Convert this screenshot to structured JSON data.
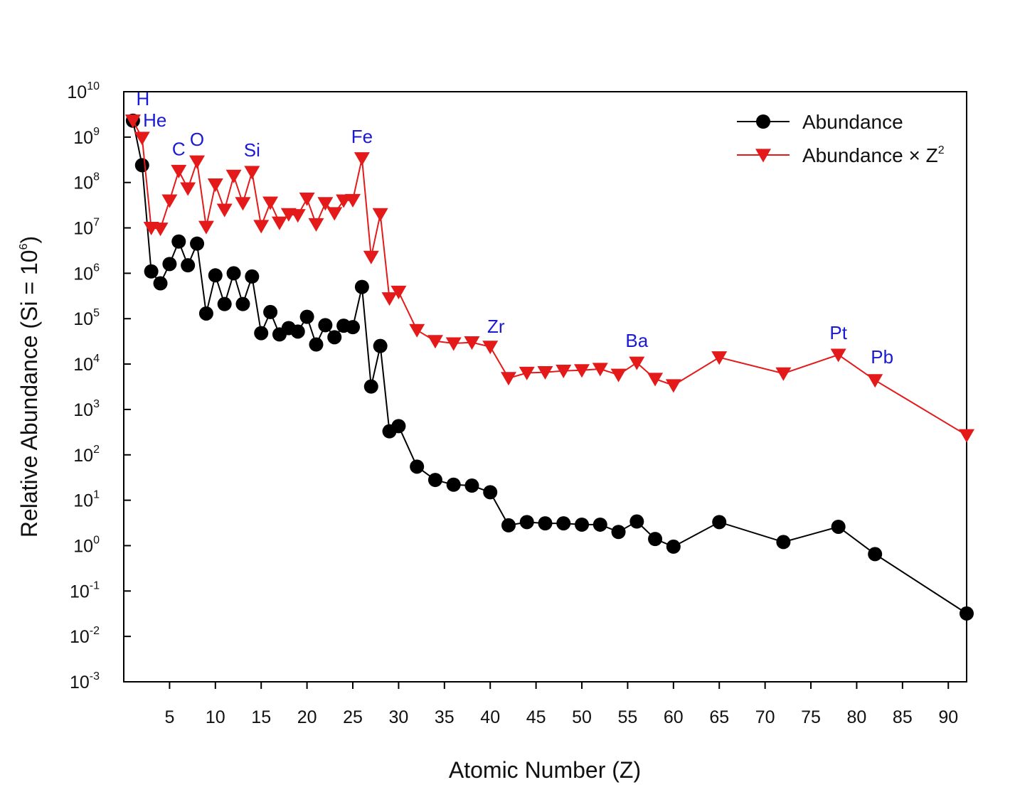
{
  "chart_data": {
    "type": "line",
    "xlabel": "Atomic Number (Z)",
    "ylabel_parts": [
      "Relative Abundance (Si = 10",
      "6",
      ")"
    ],
    "y_scale": "log",
    "xlim": [
      0,
      92
    ],
    "ylim_exp": [
      -3,
      10
    ],
    "x_ticks": [
      5,
      10,
      15,
      20,
      25,
      30,
      35,
      40,
      45,
      50,
      55,
      60,
      65,
      70,
      75,
      80,
      85,
      90
    ],
    "y_tick_exponents": [
      -3,
      -2,
      -1,
      0,
      1,
      2,
      3,
      4,
      5,
      6,
      7,
      8,
      9,
      10
    ],
    "y_tick_base": "10",
    "grid": false,
    "legend_position": "top-right",
    "series": [
      {
        "name": "Abundance",
        "color": "#000000",
        "marker": "circle",
        "x": [
          1,
          2,
          3,
          4,
          5,
          6,
          7,
          8,
          9,
          10,
          11,
          12,
          13,
          14,
          15,
          16,
          17,
          18,
          19,
          20,
          21,
          22,
          23,
          24,
          25,
          26,
          27,
          28,
          29,
          30,
          32,
          34,
          36,
          38,
          40,
          42,
          44,
          46,
          48,
          50,
          52,
          54,
          56,
          58,
          60,
          65,
          72,
          78,
          82,
          92
        ],
        "y": [
          2300000000.0,
          240000000.0,
          1100000.0,
          600000.0,
          1600000.0,
          5000000.0,
          1500000.0,
          4500000.0,
          130000.0,
          900000.0,
          210000.0,
          1000000.0,
          210000.0,
          850000.0,
          48000.0,
          140000.0,
          45000.0,
          62000.0,
          52000.0,
          110000.0,
          27000.0,
          72000.0,
          39000.0,
          70000.0,
          65000.0,
          500000.0,
          3200.0,
          25000.0,
          330,
          430,
          55,
          28,
          22,
          21,
          15,
          2.8,
          3.3,
          3.1,
          3.1,
          2.9,
          2.9,
          2.0,
          3.4,
          1.4,
          0.95,
          3.3,
          1.2,
          2.6,
          0.65,
          0.032
        ]
      },
      {
        "name": "Abundance × Z",
        "name_sup": "2",
        "color": "#e41a1a",
        "marker": "triangle-down",
        "x": [
          1,
          2,
          3,
          4,
          5,
          6,
          7,
          8,
          9,
          10,
          11,
          12,
          13,
          14,
          15,
          16,
          17,
          18,
          19,
          20,
          21,
          22,
          23,
          24,
          25,
          26,
          27,
          28,
          29,
          30,
          32,
          34,
          36,
          38,
          40,
          42,
          44,
          46,
          48,
          50,
          52,
          54,
          56,
          58,
          60,
          65,
          72,
          78,
          82,
          92
        ],
        "y": [
          2300000000.0,
          960000000.0,
          10000000.0,
          9600000.0,
          40000000.0,
          180000000.0,
          74000000.0,
          290000000.0,
          10500000.0,
          90000000.0,
          25000000.0,
          140000000.0,
          35000000.0,
          170000000.0,
          11000000.0,
          36000000.0,
          13000000.0,
          20000000.0,
          19000000.0,
          44000000.0,
          12000000.0,
          35000000.0,
          21000000.0,
          40000000.0,
          41000000.0,
          340000000.0,
          2300000.0,
          20000000.0,
          280000.0,
          390000.0,
          56000.0,
          32000.0,
          28500.0,
          30000.0,
          24000.0,
          4900.0,
          6400.0,
          6600.0,
          7100.0,
          7300.0,
          7800.0,
          5800.0,
          10700.0,
          4700.0,
          3400.0,
          14000.0,
          6200.0,
          16000.0,
          4400.0,
          270
        ]
      }
    ],
    "annotations": [
      {
        "text": "H",
        "z": 1
      },
      {
        "text": "He",
        "z": 2
      },
      {
        "text": "C",
        "z": 6
      },
      {
        "text": "O",
        "z": 8
      },
      {
        "text": "Si",
        "z": 14
      },
      {
        "text": "Fe",
        "z": 26
      },
      {
        "text": "Zr",
        "z": 40
      },
      {
        "text": "Ba",
        "z": 56
      },
      {
        "text": "Pt",
        "z": 78
      },
      {
        "text": "Pb",
        "z": 82
      }
    ]
  }
}
